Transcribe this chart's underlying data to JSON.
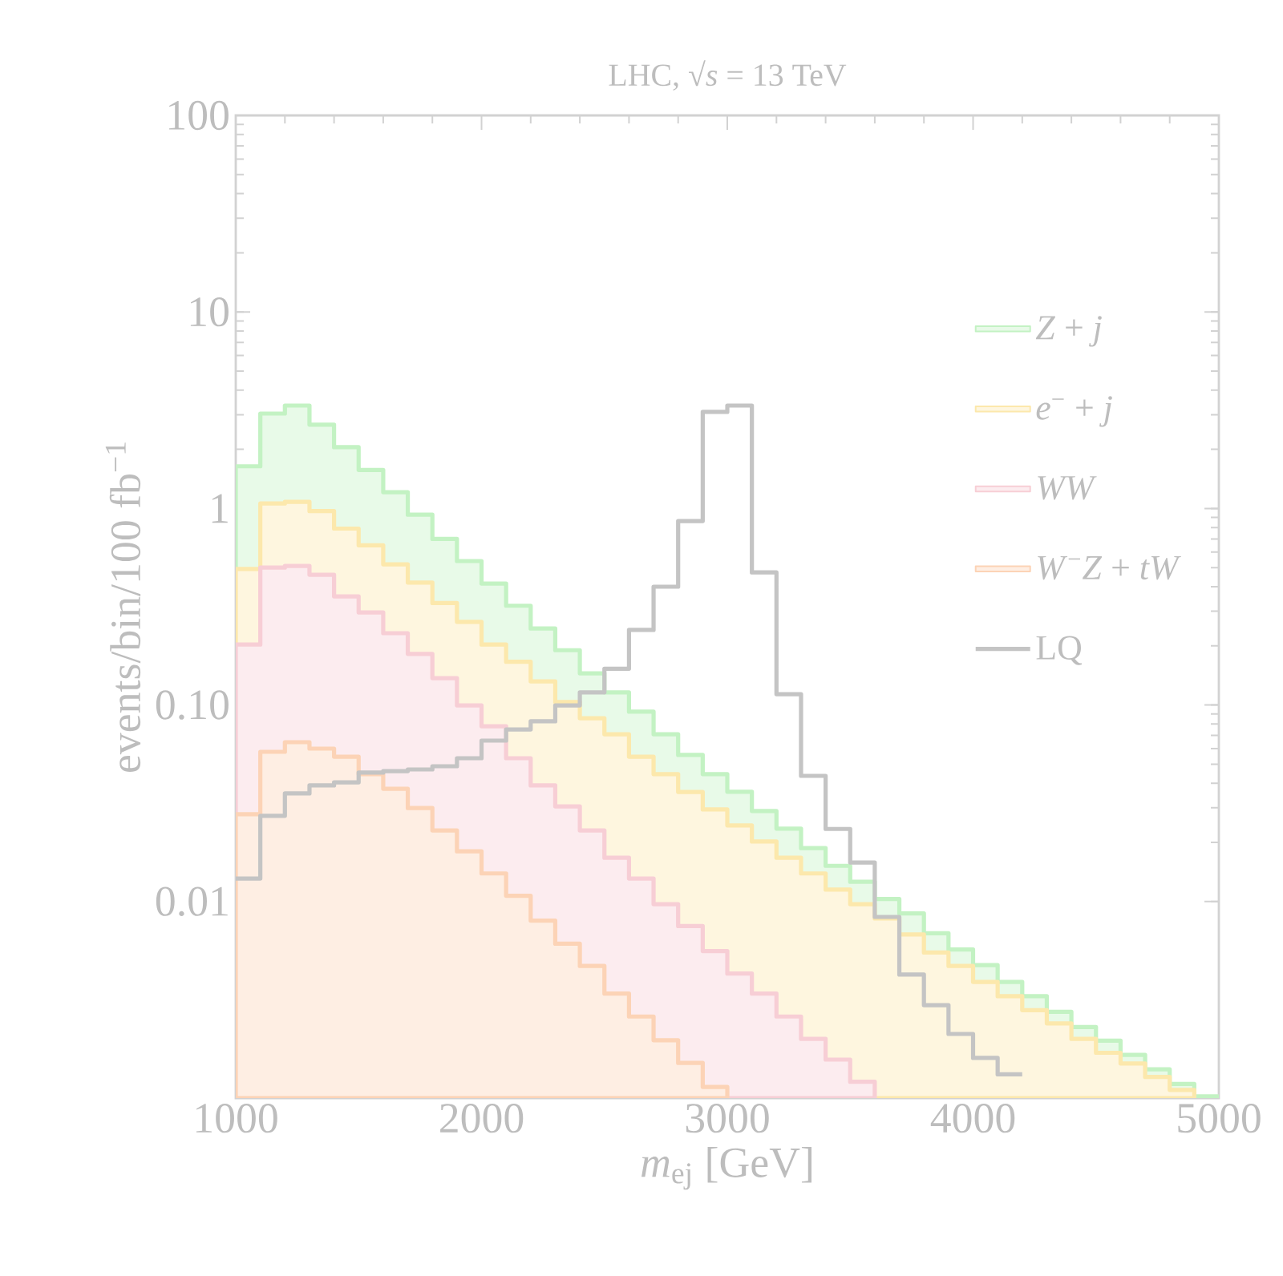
{
  "chart_data": {
    "type": "histogram",
    "title": "LHC, √*s* = 13 TeV",
    "xlabel": "*m*$_{ej}$  [GeV]",
    "ylabel": "events/bin/100 fb$^{−1}$",
    "bins": [
      1000,
      1100,
      1200,
      1300,
      1400,
      1500,
      1600,
      1700,
      1800,
      1900,
      2000,
      2100,
      2200,
      2300,
      2400,
      2500,
      2600,
      2700,
      2800,
      2900,
      3000,
      3100,
      3200,
      3300,
      3400,
      3500,
      3600,
      3700,
      3800,
      3900,
      4000,
      4100,
      4200,
      4300,
      4400,
      4500,
      4600,
      4700,
      4800,
      4900,
      5000
    ],
    "series": [
      {
        "name": "*Z* + *j*",
        "color": "#e8fae8",
        "values": [
          1.64,
          3.04,
          3.34,
          2.67,
          2.05,
          1.57,
          1.21,
          0.93,
          0.7,
          0.54,
          0.415,
          0.32,
          0.245,
          0.19,
          0.145,
          0.116,
          0.0925,
          0.071,
          0.0557,
          0.0445,
          0.0362,
          0.0289,
          0.0235,
          0.0187,
          0.0152,
          0.0126,
          0.0103,
          0.0087,
          0.0069,
          0.0057,
          0.00475,
          0.0039,
          0.0033,
          0.00275,
          0.0023,
          0.00196,
          0.00166,
          0.0014,
          0.00118,
          0.00102
        ]
      },
      {
        "name": "*e*$^{−}$ + *j*",
        "color": "#fef6df",
        "bins": [
          1000,
          1100,
          1200,
          1300,
          1400,
          1500,
          1600,
          1700,
          1800,
          1900,
          2000,
          2100,
          2200,
          2300,
          2400,
          2500,
          2600,
          2700,
          2800,
          2900,
          3000,
          3100,
          3200,
          3300,
          3400,
          3500,
          3600,
          3700,
          3800,
          3900,
          4000,
          4100,
          4200,
          4300,
          4400,
          4500,
          4600,
          4700,
          4800,
          4900
        ],
        "values": [
          0.492,
          1.06,
          1.08,
          0.97,
          0.79,
          0.65,
          0.52,
          0.42,
          0.33,
          0.265,
          0.203,
          0.166,
          0.132,
          0.1035,
          0.0857,
          0.071,
          0.0546,
          0.0445,
          0.0361,
          0.0294,
          0.0244,
          0.0202,
          0.0167,
          0.0139,
          0.0115,
          0.0097,
          0.0082,
          0.0068,
          0.0055,
          0.0047,
          0.0039,
          0.0033,
          0.0028,
          0.0024,
          0.002,
          0.0017,
          0.0015,
          0.00128,
          0.0011
        ]
      },
      {
        "name": "*WW*",
        "color": "#fcecef",
        "bins": [
          1000,
          1100,
          1200,
          1300,
          1400,
          1500,
          1600,
          1700,
          1800,
          1900,
          2000,
          2100,
          2200,
          2300,
          2400,
          2500,
          2600,
          2700,
          2800,
          2900,
          3000,
          3100,
          3200,
          3300,
          3400,
          3500,
          3600
        ],
        "values": [
          0.203,
          0.5,
          0.51,
          0.46,
          0.357,
          0.296,
          0.232,
          0.182,
          0.137,
          0.0996,
          0.078,
          0.0536,
          0.039,
          0.0305,
          0.023,
          0.0167,
          0.0131,
          0.0097,
          0.0075,
          0.0056,
          0.0043,
          0.0034,
          0.0026,
          0.002,
          0.00157,
          0.00121
        ]
      },
      {
        "name": "*W*$^{−}$*Z* + *tW*",
        "color": "#feeee3",
        "bins": [
          1000,
          1100,
          1200,
          1300,
          1400,
          1500,
          1600,
          1700,
          1800,
          1900,
          2000,
          2100,
          2200,
          2300,
          2400,
          2500,
          2600,
          2700,
          2800,
          2900,
          3000
        ],
        "values": [
          0.0278,
          0.0578,
          0.0647,
          0.06,
          0.0546,
          0.0445,
          0.0375,
          0.0299,
          0.023,
          0.018,
          0.0139,
          0.0107,
          0.008,
          0.0061,
          0.0047,
          0.0034,
          0.0026,
          0.00197,
          0.00151,
          0.00114
        ]
      },
      {
        "name": "LQ",
        "type": "step",
        "color": "#c4c4c4",
        "x": [
          1000,
          1100,
          1200,
          1300,
          1400,
          1500,
          1600,
          1700,
          1800,
          1900,
          2000,
          2100,
          2200,
          2300,
          2400,
          2500,
          2600,
          2700,
          2800,
          2900,
          3000,
          3100,
          3200,
          3300,
          3400,
          3500,
          3600,
          3700,
          3800,
          3900,
          4000,
          4100,
          4200
        ],
        "values": [
          0.0131,
          0.0273,
          0.0355,
          0.039,
          0.0404,
          0.0453,
          0.0461,
          0.047,
          0.0488,
          0.0536,
          0.0659,
          0.0751,
          0.0826,
          0.0996,
          0.116,
          0.153,
          0.241,
          0.4,
          0.863,
          3.1,
          3.34,
          0.473,
          0.1135,
          0.0436,
          0.0234,
          0.0158,
          0.00835,
          0.00425,
          0.00297,
          0.00212,
          0.0016,
          0.00132,
          0.00132
        ]
      }
    ],
    "xlim": [
      1000,
      5000
    ],
    "ylim": [
      0.001,
      100
    ],
    "xticks": [
      1000,
      2000,
      3000,
      4000,
      5000
    ],
    "yticks": [
      {
        "value": 0.01,
        "label": "0.01"
      },
      {
        "value": 0.1,
        "label": "0.10"
      },
      1,
      10,
      100
    ],
    "log": true,
    "legend": "right"
  }
}
